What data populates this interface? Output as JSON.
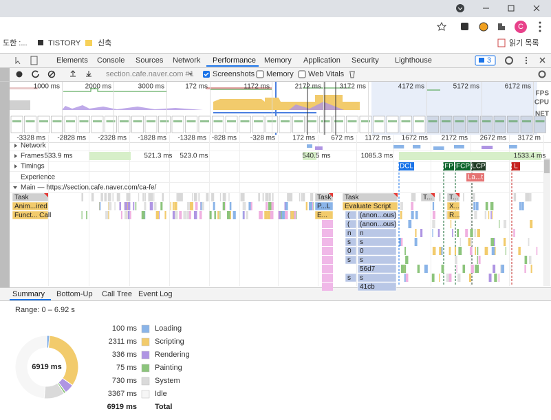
{
  "browser": {
    "bookmarks": [
      "도한 :...",
      "TISTORY",
      "신축"
    ],
    "reading_list": "읽기 목록",
    "avatar": "C"
  },
  "devtools": {
    "tabs": [
      "Elements",
      "Console",
      "Sources",
      "Network",
      "Performance",
      "Memory",
      "Application",
      "Security",
      "Lighthouse"
    ],
    "issues_badge": "3",
    "toolbar": {
      "target": "section.cafe.naver.com #1",
      "screenshots": "Screenshots",
      "memory": "Memory",
      "web_vitals": "Web Vitals"
    },
    "overview": {
      "ticks": [
        "1000 ms",
        "2000 ms",
        "3000 ms",
        "172 ms",
        "1172 ms",
        "2172 ms",
        "3172 ms",
        "4172 ms",
        "5172 ms",
        "6172 ms"
      ],
      "lanes": [
        "FPS",
        "CPU",
        "NET"
      ]
    },
    "ruler": [
      "-3328 ms",
      "-2828 ms",
      "-2328 ms",
      "-1828 ms",
      "-1328 ms",
      "-828 ms",
      "-328 ms",
      "172 ms",
      "672 ms",
      "1172 ms",
      "1672 ms",
      "2172 ms",
      "2672 ms",
      "3172 m"
    ],
    "tracks": {
      "network": "Network",
      "frames": "Frames",
      "timings": "Timings",
      "experience": "Experience",
      "main": "Main — https://section.cafe.naver.com/ca-fe/"
    },
    "frames": [
      "533.9 ms",
      "521.3 ms",
      "523.0 ms",
      "540.5 ms",
      "1085.3 ms",
      "1533.4 ms"
    ],
    "timings": [
      "DCL",
      "FP",
      "FCP",
      "LCP",
      "L"
    ],
    "experience": "La...t",
    "flame": [
      "Task",
      "Anim...ired",
      "Funct... Call",
      "Task",
      "P...L",
      "E...",
      "Task",
      "Evaluate Script",
      "(",
      "(anon...ous)",
      "(",
      "(anon...ous)",
      "n",
      "n",
      "s",
      "s",
      "0",
      "0",
      "s",
      "s",
      "56d7",
      "s",
      "s",
      "41cb",
      "T...",
      "T...",
      "X...",
      "R..."
    ],
    "summary": {
      "tabs": [
        "Summary",
        "Bottom-Up",
        "Call Tree",
        "Event Log"
      ],
      "range": "Range: 0 – 6.92 s",
      "items": [
        {
          "name": "Loading",
          "value": 100,
          "label": "100 ms",
          "color": "#8ab4e8"
        },
        {
          "name": "Scripting",
          "value": 2311,
          "label": "2311 ms",
          "color": "#f2cb6c"
        },
        {
          "name": "Rendering",
          "value": 336,
          "label": "336 ms",
          "color": "#af95e3"
        },
        {
          "name": "Painting",
          "value": 75,
          "label": "75 ms",
          "color": "#8cc47c"
        },
        {
          "name": "System",
          "value": 730,
          "label": "730 ms",
          "color": "#dadada"
        },
        {
          "name": "Idle",
          "value": 3367,
          "label": "3367 ms",
          "color": "#f6f6f6"
        }
      ],
      "total": {
        "name": "Total",
        "value": 6919,
        "label": "6919 ms"
      }
    }
  }
}
